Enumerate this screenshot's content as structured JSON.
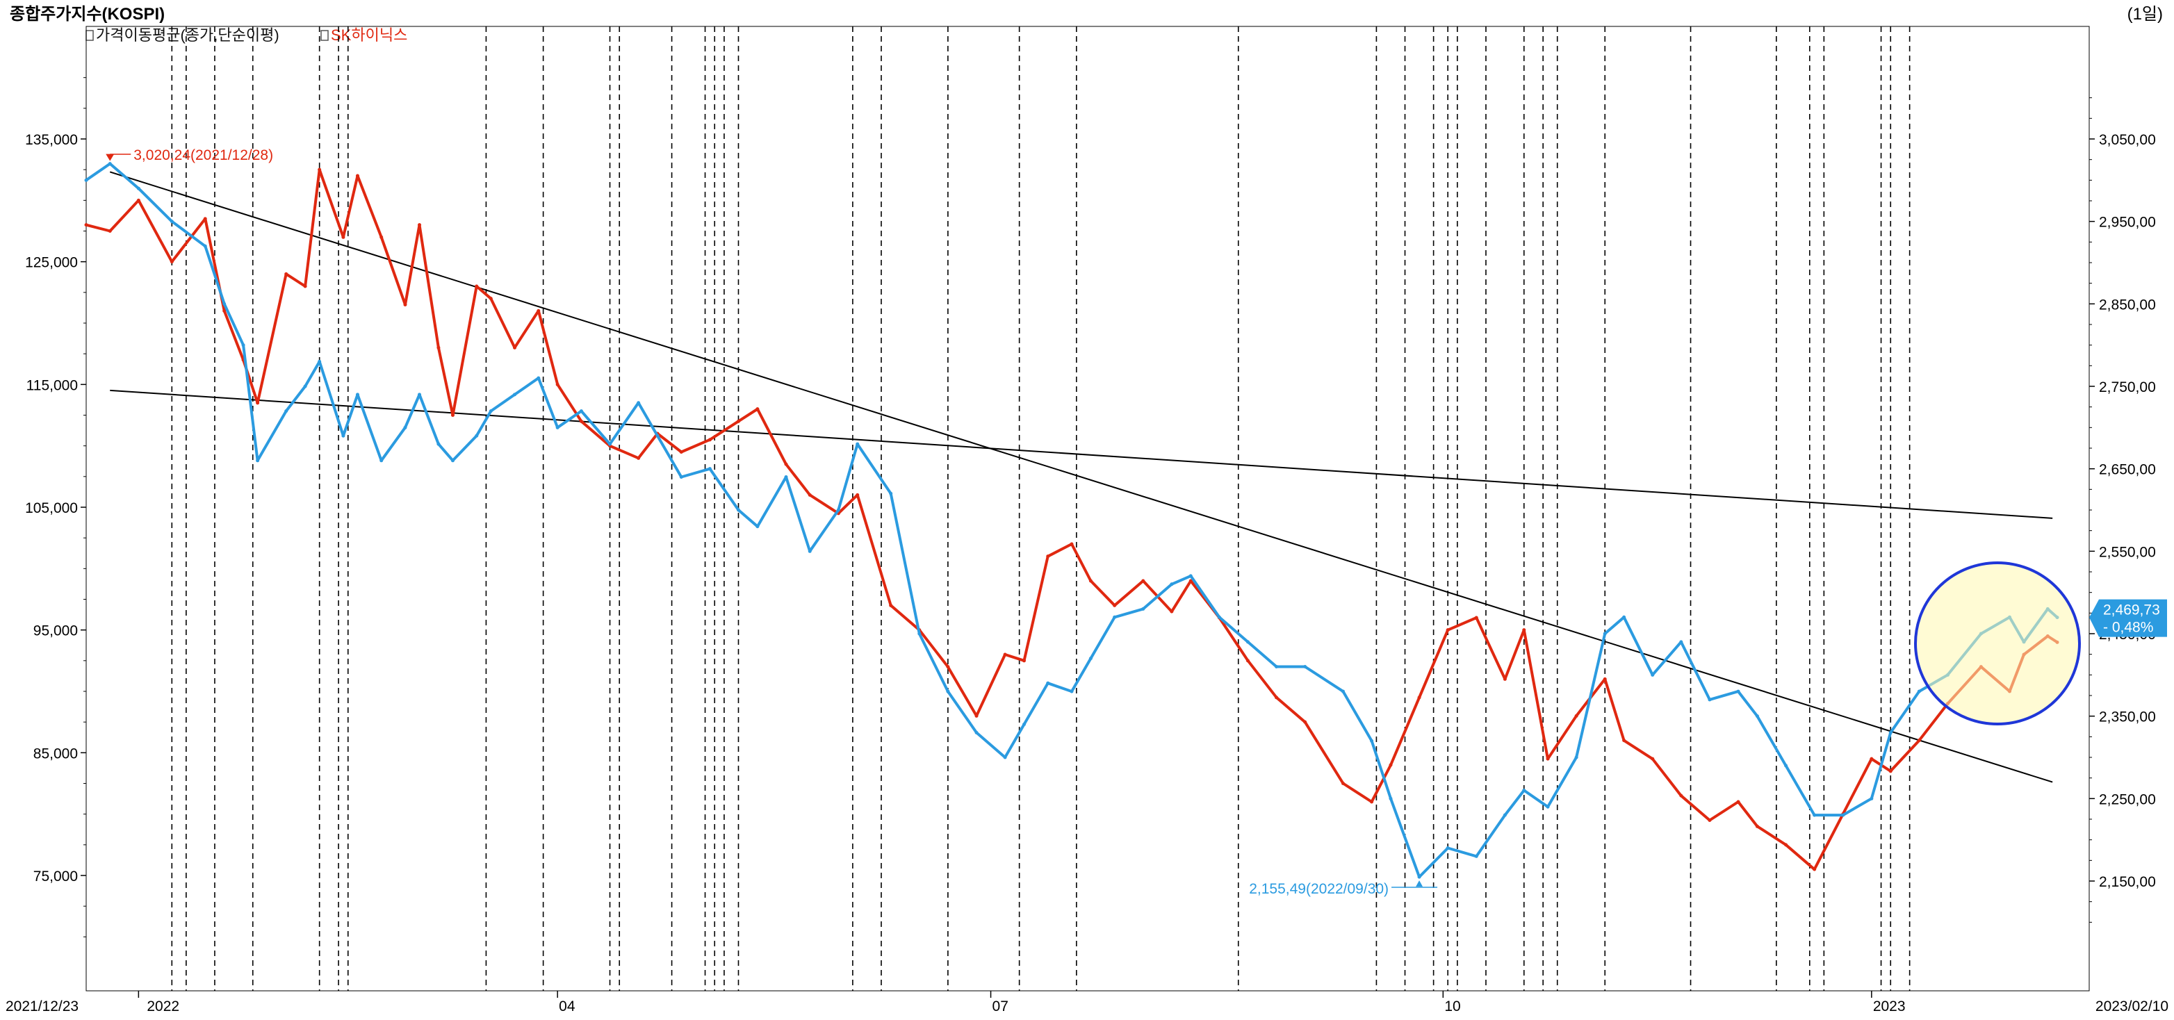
{
  "window": {
    "title": "종합주가지수(KOSPI)",
    "period": "(1일)"
  },
  "legend": [
    {
      "label": "가격이동평균(종가,단순이평)",
      "color": "#111111"
    },
    {
      "label": "SK하이닉스",
      "color": "#e02810"
    }
  ],
  "colors": {
    "kospi": "#2b9be0",
    "skhynix": "#e02810",
    "trendline": "#000000",
    "vline": "#000000",
    "highlight_circle": "#1f37d8",
    "last_label_bg": "#2b9be0"
  },
  "chart_data": {
    "type": "line",
    "x_axis": {
      "start": "2021/12/23",
      "end": "2023/02/10",
      "tick_labels": [
        "2021/12/23",
        "2022",
        "04",
        "07",
        "10",
        "2023",
        "2023/02/10"
      ]
    },
    "left_axis": {
      "series": "SK하이닉스",
      "ylim": [
        68000,
        145000
      ],
      "tick_labels": [
        "135,000",
        "125,000",
        "115,000",
        "105,000",
        "95,000",
        "85,000",
        "75,000"
      ]
    },
    "right_axis": {
      "series": "종합주가지수(KOSPI)",
      "ylim": [
        2090,
        3140
      ],
      "tick_labels": [
        "3,050,00",
        "2,950,00",
        "2,850,00",
        "2,750,00",
        "2,650,00",
        "2,550,00",
        "2,450,00",
        "2,350,00",
        "2,250,00",
        "2,150,00"
      ]
    },
    "annotations": {
      "high": "3,020,24(2021/12/28)",
      "low": "2,155,49(2022/09/30)",
      "last_value": "2,469,73",
      "last_change": "- 0,48%"
    },
    "series": [
      {
        "name": "SK하이닉스",
        "axis": "left",
        "x": [
          "2021-12-23",
          "2021-12-28",
          "2022-01-03",
          "2022-01-10",
          "2022-01-17",
          "2022-01-21",
          "2022-01-25",
          "2022-01-28",
          "2022-02-03",
          "2022-02-07",
          "2022-02-10",
          "2022-02-15",
          "2022-02-18",
          "2022-02-23",
          "2022-02-28",
          "2022-03-03",
          "2022-03-07",
          "2022-03-10",
          "2022-03-15",
          "2022-03-18",
          "2022-03-23",
          "2022-03-28",
          "2022-04-01",
          "2022-04-06",
          "2022-04-12",
          "2022-04-18",
          "2022-04-22",
          "2022-04-27",
          "2022-05-03",
          "2022-05-09",
          "2022-05-13",
          "2022-05-19",
          "2022-05-24",
          "2022-05-30",
          "2022-06-03",
          "2022-06-10",
          "2022-06-16",
          "2022-06-22",
          "2022-06-28",
          "2022-07-04",
          "2022-07-08",
          "2022-07-13",
          "2022-07-18",
          "2022-07-22",
          "2022-07-27",
          "2022-08-02",
          "2022-08-08",
          "2022-08-12",
          "2022-08-18",
          "2022-08-24",
          "2022-08-30",
          "2022-09-05",
          "2022-09-13",
          "2022-09-19",
          "2022-09-23",
          "2022-09-29",
          "2022-10-05",
          "2022-10-11",
          "2022-10-17",
          "2022-10-21",
          "2022-10-26",
          "2022-11-01",
          "2022-11-07",
          "2022-11-11",
          "2022-11-17",
          "2022-11-23",
          "2022-11-29",
          "2022-12-05",
          "2022-12-09",
          "2022-12-15",
          "2022-12-21",
          "2022-12-27",
          "2023-01-02",
          "2023-01-06",
          "2023-01-12",
          "2023-01-18",
          "2023-01-25",
          "2023-01-31",
          "2023-02-03",
          "2023-02-08",
          "2023-02-10"
        ],
        "values": [
          128000,
          127500,
          130000,
          125000,
          128500,
          121000,
          117000,
          113500,
          124000,
          123000,
          132500,
          127000,
          132000,
          127000,
          121500,
          128000,
          118000,
          112500,
          123000,
          122000,
          118000,
          121000,
          115000,
          112000,
          110000,
          109000,
          111000,
          109500,
          110500,
          112000,
          113000,
          108500,
          106000,
          104500,
          106000,
          97000,
          95000,
          92000,
          88000,
          93000,
          92500,
          101000,
          102000,
          99000,
          97000,
          99000,
          96500,
          99000,
          96000,
          92500,
          89500,
          87500,
          82500,
          81000,
          84000,
          89500,
          95000,
          96000,
          91000,
          95000,
          84500,
          88000,
          91000,
          86000,
          84500,
          81500,
          79500,
          81000,
          79000,
          77500,
          75500,
          80000,
          84500,
          83500,
          86000,
          89000,
          92000,
          90000,
          93000,
          94500,
          94000
        ]
      },
      {
        "name": "종합주가지수(KOSPI)",
        "axis": "right",
        "x": [
          "2021-12-23",
          "2021-12-28",
          "2022-01-03",
          "2022-01-10",
          "2022-01-17",
          "2022-01-21",
          "2022-01-25",
          "2022-01-28",
          "2022-02-03",
          "2022-02-07",
          "2022-02-10",
          "2022-02-15",
          "2022-02-18",
          "2022-02-23",
          "2022-02-28",
          "2022-03-03",
          "2022-03-07",
          "2022-03-10",
          "2022-03-15",
          "2022-03-18",
          "2022-03-23",
          "2022-03-28",
          "2022-04-01",
          "2022-04-06",
          "2022-04-12",
          "2022-04-18",
          "2022-04-22",
          "2022-04-27",
          "2022-05-03",
          "2022-05-09",
          "2022-05-13",
          "2022-05-19",
          "2022-05-24",
          "2022-05-30",
          "2022-06-03",
          "2022-06-10",
          "2022-06-16",
          "2022-06-22",
          "2022-06-28",
          "2022-07-04",
          "2022-07-08",
          "2022-07-13",
          "2022-07-18",
          "2022-07-22",
          "2022-07-27",
          "2022-08-02",
          "2022-08-08",
          "2022-08-12",
          "2022-08-18",
          "2022-08-24",
          "2022-08-30",
          "2022-09-05",
          "2022-09-13",
          "2022-09-19",
          "2022-09-23",
          "2022-09-29",
          "2022-10-05",
          "2022-10-11",
          "2022-10-17",
          "2022-10-21",
          "2022-10-26",
          "2022-11-01",
          "2022-11-07",
          "2022-11-11",
          "2022-11-17",
          "2022-11-23",
          "2022-11-29",
          "2022-12-05",
          "2022-12-09",
          "2022-12-15",
          "2022-12-21",
          "2022-12-27",
          "2023-01-02",
          "2023-01-06",
          "2023-01-12",
          "2023-01-18",
          "2023-01-25",
          "2023-01-31",
          "2023-02-03",
          "2023-02-08",
          "2023-02-10"
        ],
        "values": [
          3000,
          3020,
          2990,
          2950,
          2920,
          2850,
          2800,
          2660,
          2720,
          2750,
          2780,
          2690,
          2740,
          2660,
          2700,
          2740,
          2680,
          2660,
          2690,
          2720,
          2740,
          2760,
          2700,
          2720,
          2680,
          2730,
          2690,
          2640,
          2650,
          2600,
          2580,
          2640,
          2550,
          2600,
          2680,
          2620,
          2450,
          2380,
          2330,
          2300,
          2340,
          2390,
          2380,
          2420,
          2470,
          2480,
          2510,
          2520,
          2470,
          2440,
          2410,
          2410,
          2380,
          2320,
          2250,
          2155,
          2190,
          2180,
          2230,
          2260,
          2240,
          2300,
          2450,
          2470,
          2400,
          2440,
          2370,
          2380,
          2350,
          2290,
          2230,
          2230,
          2250,
          2330,
          2380,
          2400,
          2450,
          2470,
          2440,
          2480,
          2469.73
        ]
      }
    ],
    "vertical_markers": [
      "2022-01-10",
      "2022-01-13",
      "2022-01-19",
      "2022-01-27",
      "2022-02-10",
      "2022-02-14",
      "2022-02-16",
      "2022-03-17",
      "2022-03-29",
      "2022-04-12",
      "2022-04-14",
      "2022-04-25",
      "2022-05-02",
      "2022-05-04",
      "2022-05-06",
      "2022-05-09",
      "2022-06-02",
      "2022-06-08",
      "2022-06-22",
      "2022-07-07",
      "2022-07-19",
      "2022-08-22",
      "2022-09-20",
      "2022-09-26",
      "2022-10-02",
      "2022-10-05",
      "2022-10-07",
      "2022-10-13",
      "2022-10-21",
      "2022-10-25",
      "2022-10-28",
      "2022-11-07",
      "2022-11-25",
      "2022-12-13",
      "2022-12-20",
      "2022-12-23",
      "2023-01-04",
      "2023-01-06",
      "2023-01-10"
    ],
    "trendlines": [
      {
        "axis": "right",
        "from": {
          "x": "2021-12-28",
          "y": 3010
        },
        "to": {
          "x": "2023-02-09",
          "y": 2270
        }
      },
      {
        "axis": "right",
        "from": {
          "x": "2021-12-28",
          "y": 2745
        },
        "to": {
          "x": "2023-02-09",
          "y": 2590
        }
      }
    ],
    "grid": false
  }
}
